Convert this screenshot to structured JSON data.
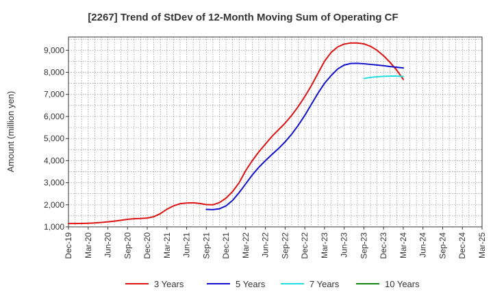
{
  "chart_data": {
    "type": "line",
    "title": "[2267]  Trend of StDev of 12-Month Moving Sum of Operating CF",
    "ylabel": "Amount (million yen)",
    "xlabel": "",
    "ylim": [
      1000,
      9600
    ],
    "yticks": [
      1000,
      2000,
      3000,
      4000,
      5000,
      6000,
      7000,
      8000,
      9000
    ],
    "ytick_labels": [
      "1,000",
      "2,000",
      "3,000",
      "4,000",
      "5,000",
      "6,000",
      "7,000",
      "8,000",
      "9,000"
    ],
    "x_start": "Dec-19",
    "x_end": "Mar-25",
    "x_tick_labels": [
      "Dec-19",
      "Mar-20",
      "Jun-20",
      "Sep-20",
      "Dec-20",
      "Mar-21",
      "Jun-21",
      "Sep-21",
      "Dec-21",
      "Mar-22",
      "Jun-22",
      "Sep-22",
      "Dec-22",
      "Mar-23",
      "Jun-23",
      "Sep-23",
      "Dec-23",
      "Mar-24",
      "Jun-24",
      "Sep-24",
      "Dec-24",
      "Mar-25"
    ],
    "grid": true,
    "legend_position": "bottom",
    "series": [
      {
        "name": "3 Years",
        "color": "#dd1111",
        "points": [
          [
            "Dec-19",
            1150
          ],
          [
            "Jan-20",
            1150
          ],
          [
            "Feb-20",
            1155
          ],
          [
            "Mar-20",
            1165
          ],
          [
            "Apr-20",
            1180
          ],
          [
            "May-20",
            1200
          ],
          [
            "Jun-20",
            1230
          ],
          [
            "Jul-20",
            1260
          ],
          [
            "Aug-20",
            1300
          ],
          [
            "Sep-20",
            1340
          ],
          [
            "Oct-20",
            1370
          ],
          [
            "Nov-20",
            1380
          ],
          [
            "Dec-20",
            1400
          ],
          [
            "Jan-21",
            1460
          ],
          [
            "Feb-21",
            1600
          ],
          [
            "Mar-21",
            1800
          ],
          [
            "Apr-21",
            1950
          ],
          [
            "May-21",
            2050
          ],
          [
            "Jun-21",
            2080
          ],
          [
            "Jul-21",
            2090
          ],
          [
            "Aug-21",
            2060
          ],
          [
            "Sep-21",
            2010
          ],
          [
            "Oct-21",
            2000
          ],
          [
            "Nov-21",
            2100
          ],
          [
            "Dec-21",
            2300
          ],
          [
            "Jan-22",
            2600
          ],
          [
            "Feb-22",
            3000
          ],
          [
            "Mar-22",
            3550
          ],
          [
            "Apr-22",
            4000
          ],
          [
            "May-22",
            4400
          ],
          [
            "Jun-22",
            4750
          ],
          [
            "Jul-22",
            5100
          ],
          [
            "Aug-22",
            5400
          ],
          [
            "Sep-22",
            5700
          ],
          [
            "Oct-22",
            6050
          ],
          [
            "Nov-22",
            6450
          ],
          [
            "Dec-22",
            6900
          ],
          [
            "Jan-23",
            7400
          ],
          [
            "Feb-23",
            7950
          ],
          [
            "Mar-23",
            8500
          ],
          [
            "Apr-23",
            8900
          ],
          [
            "May-23",
            9150
          ],
          [
            "Jun-23",
            9280
          ],
          [
            "Jul-23",
            9330
          ],
          [
            "Aug-23",
            9330
          ],
          [
            "Sep-23",
            9290
          ],
          [
            "Oct-23",
            9180
          ],
          [
            "Nov-23",
            9000
          ],
          [
            "Dec-23",
            8750
          ],
          [
            "Jan-24",
            8450
          ],
          [
            "Feb-24",
            8100
          ],
          [
            "Mar-24",
            7680
          ]
        ]
      },
      {
        "name": "5 Years",
        "color": "#1111cc",
        "points": [
          [
            "Sep-21",
            1790
          ],
          [
            "Oct-21",
            1780
          ],
          [
            "Nov-21",
            1820
          ],
          [
            "Dec-21",
            1950
          ],
          [
            "Jan-22",
            2200
          ],
          [
            "Feb-22",
            2550
          ],
          [
            "Mar-22",
            2950
          ],
          [
            "Apr-22",
            3350
          ],
          [
            "May-22",
            3700
          ],
          [
            "Jun-22",
            4000
          ],
          [
            "Jul-22",
            4280
          ],
          [
            "Aug-22",
            4550
          ],
          [
            "Sep-22",
            4850
          ],
          [
            "Oct-22",
            5200
          ],
          [
            "Nov-22",
            5600
          ],
          [
            "Dec-22",
            6050
          ],
          [
            "Jan-23",
            6550
          ],
          [
            "Feb-23",
            7050
          ],
          [
            "Mar-23",
            7500
          ],
          [
            "Apr-23",
            7850
          ],
          [
            "May-23",
            8150
          ],
          [
            "Jun-23",
            8330
          ],
          [
            "Jul-23",
            8400
          ],
          [
            "Aug-23",
            8410
          ],
          [
            "Sep-23",
            8390
          ],
          [
            "Oct-23",
            8360
          ],
          [
            "Nov-23",
            8330
          ],
          [
            "Dec-23",
            8300
          ],
          [
            "Jan-24",
            8260
          ],
          [
            "Feb-24",
            8230
          ],
          [
            "Mar-24",
            8200
          ]
        ]
      },
      {
        "name": "7 Years",
        "color": "#22dddd",
        "points": [
          [
            "Sep-23",
            7720
          ],
          [
            "Oct-23",
            7770
          ],
          [
            "Nov-23",
            7800
          ],
          [
            "Dec-23",
            7820
          ],
          [
            "Jan-24",
            7830
          ],
          [
            "Feb-24",
            7830
          ],
          [
            "Mar-24",
            7810
          ]
        ]
      },
      {
        "name": "10 Years",
        "color": "#118811",
        "points": []
      }
    ]
  }
}
